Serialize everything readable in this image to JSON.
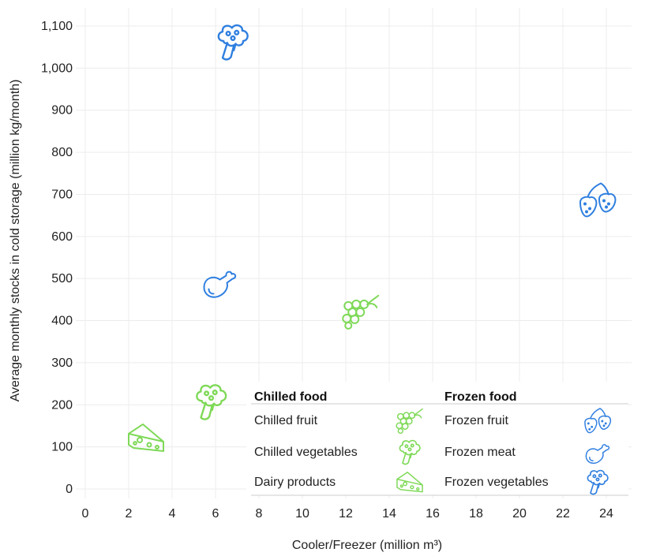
{
  "chart_data": {
    "type": "scatter",
    "title": "",
    "xlabel": "Cooler/Freezer (million m³)",
    "ylabel": "Average monthly stocks in cold storage (million kg/month)",
    "xlim": [
      0,
      25
    ],
    "ylim": [
      0,
      1100
    ],
    "x_ticks": [
      "0",
      "2",
      "4",
      "6",
      "8",
      "10",
      "12",
      "14",
      "16",
      "18",
      "20",
      "22",
      "24"
    ],
    "y_ticks": [
      "0",
      "100",
      "200",
      "300",
      "400",
      "500",
      "600",
      "700",
      "800",
      "900",
      "1,000",
      "1,100"
    ],
    "grid": true,
    "colors": {
      "chilled": "#7ed957",
      "frozen": "#2f7fe0"
    },
    "points": [
      {
        "name": "Dairy products",
        "group": "Chilled food",
        "icon": "cheese-icon",
        "x": 2.8,
        "y": 120
      },
      {
        "name": "Chilled vegetables",
        "group": "Chilled food",
        "icon": "broccoli-icon",
        "x": 5.8,
        "y": 205
      },
      {
        "name": "Chilled fruit",
        "group": "Chilled food",
        "icon": "grapes-icon",
        "x": 12.7,
        "y": 420
      },
      {
        "name": "Frozen meat",
        "group": "Frozen food",
        "icon": "drumstick-icon",
        "x": 6.2,
        "y": 490
      },
      {
        "name": "Frozen vegetables",
        "group": "Frozen food",
        "icon": "broccoli-icon",
        "x": 6.8,
        "y": 1060
      },
      {
        "name": "Frozen fruit",
        "group": "Frozen food",
        "icon": "strawberries-icon",
        "x": 23.6,
        "y": 685
      }
    ],
    "legend": {
      "placement": "bottom-right",
      "columns": [
        {
          "heading": "Chilled food",
          "items": [
            {
              "label": "Chilled fruit",
              "icon": "grapes-icon"
            },
            {
              "label": "Chilled vegetables",
              "icon": "broccoli-icon"
            },
            {
              "label": "Dairy products",
              "icon": "cheese-icon"
            }
          ]
        },
        {
          "heading": "Frozen food",
          "items": [
            {
              "label": "Frozen fruit",
              "icon": "strawberries-icon"
            },
            {
              "label": "Frozen meat",
              "icon": "drumstick-icon"
            },
            {
              "label": "Frozen vegetables",
              "icon": "broccoli-icon"
            }
          ]
        }
      ]
    }
  }
}
